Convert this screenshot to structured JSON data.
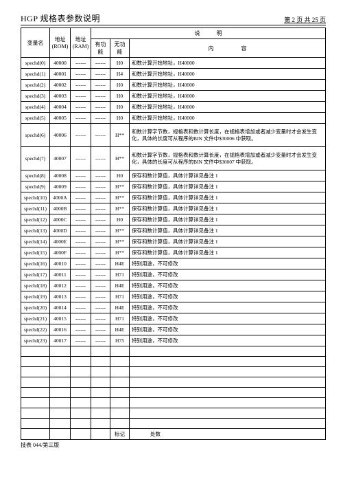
{
  "header": {
    "title": "HGP 规格表参数说明",
    "pager": "第 2 页 共 25 页"
  },
  "columns": {
    "var": "变量名",
    "rom": "地址",
    "rom_sub": "(ROM)",
    "ram": "地址",
    "ram_sub": "(RAM)",
    "desc_group": "说　　　明",
    "has_fn": "有功能",
    "no_fn": "无功能",
    "content": "内　　　　　容"
  },
  "rows": [
    {
      "v": "spechd(0)",
      "rom": "40000",
      "ram": "------",
      "y": "------",
      "n": "H0",
      "d": "和数计算开始地址，H40000"
    },
    {
      "v": "spechd(1)",
      "rom": "40001",
      "ram": "------",
      "y": "------",
      "n": "H4",
      "d": "和数计算开始地址，H40000"
    },
    {
      "v": "spechd(2)",
      "rom": "40002",
      "ram": "------",
      "y": "------",
      "n": "H0",
      "d": "和数计算开始地址，H40000"
    },
    {
      "v": "spechd(3)",
      "rom": "40003",
      "ram": "------",
      "y": "------",
      "n": "H0",
      "d": "和数计算开始地址，H40000"
    },
    {
      "v": "spechd(4)",
      "rom": "40004",
      "ram": "------",
      "y": "------",
      "n": "H0",
      "d": "和数计算开始地址，H40000"
    },
    {
      "v": "spechd(5)",
      "rom": "40005",
      "ram": "------",
      "y": "------",
      "n": "H0",
      "d": "和数计算开始地址，H40000"
    },
    {
      "v": "spechd(6)",
      "rom": "40006",
      "ram": "------",
      "y": "------",
      "n": "H**",
      "d": "和数计算字节数，规格表和数计算长度，在规格表增加或者减少变量时才会发生变化，具体的长度可从程序的BIN 文件中$30006 中获取。",
      "tall": true
    },
    {
      "v": "spechd(7)",
      "rom": "40007",
      "ram": "------",
      "y": "------",
      "n": "H**",
      "d": "和数计算字节数，规格表和数计算长度，在规格表增加或者减少变量时才会发生变化，具体的长度可从程序的BIN 文件中$30007 中获取。",
      "tall": true
    },
    {
      "v": "spechd(8)",
      "rom": "40008",
      "ram": "------",
      "y": "------",
      "n": "H0",
      "d": "保存和数计算值，具体计算详见备注 1"
    },
    {
      "v": "spechd(9)",
      "rom": "40009",
      "ram": "------",
      "y": "------",
      "n": "H**",
      "d": "保存和数计算值，具体计算详见备注 1"
    },
    {
      "v": "spechd(10)",
      "rom": "4000A",
      "ram": "------",
      "y": "------",
      "n": "H**",
      "d": "保存和数计算值，具体计算详见备注 1"
    },
    {
      "v": "spechd(11)",
      "rom": "4000B",
      "ram": "------",
      "y": "------",
      "n": "H**",
      "d": "保存和数计算值，具体计算详见备注 1"
    },
    {
      "v": "spechd(12)",
      "rom": "4000C",
      "ram": "------",
      "y": "------",
      "n": "H0",
      "d": "保存和数计算值，具体计算详见备注 1"
    },
    {
      "v": "spechd(13)",
      "rom": "4000D",
      "ram": "------",
      "y": "------",
      "n": "H**",
      "d": "保存和数计算值，具体计算详见备注 1"
    },
    {
      "v": "spechd(14)",
      "rom": "4000E",
      "ram": "------",
      "y": "------",
      "n": "H**",
      "d": "保存和数计算值，具体计算详见备注 1"
    },
    {
      "v": "spechd(15)",
      "rom": "4000F",
      "ram": "------",
      "y": "------",
      "n": "H**",
      "d": "保存和数计算值，具体计算详见备注 1"
    },
    {
      "v": "spechd(16)",
      "rom": "40010",
      "ram": "------",
      "y": "------",
      "n": "H4E",
      "d": "特别用途，不可修改"
    },
    {
      "v": "spechd(17)",
      "rom": "40011",
      "ram": "------",
      "y": "------",
      "n": "H71",
      "d": "特别用途，不可修改"
    },
    {
      "v": "spechd(18)",
      "rom": "40012",
      "ram": "------",
      "y": "------",
      "n": "H4E",
      "d": "特别用途，不可修改"
    },
    {
      "v": "spechd(19)",
      "rom": "40013",
      "ram": "------",
      "y": "------",
      "n": "H71",
      "d": "特别用途，不可修改"
    },
    {
      "v": "spechd(20)",
      "rom": "40014",
      "ram": "------",
      "y": "------",
      "n": "H4E",
      "d": "特别用途，不可修改"
    },
    {
      "v": "spechd(21)",
      "rom": "40015",
      "ram": "------",
      "y": "------",
      "n": "H71",
      "d": "特别用途，不可修改"
    },
    {
      "v": "spechd(22)",
      "rom": "40016",
      "ram": "------",
      "y": "------",
      "n": "H4E",
      "d": "特别用途，不可修改"
    },
    {
      "v": "spechd(23)",
      "rom": "40017",
      "ram": "------",
      "y": "------",
      "n": "H75",
      "d": "特别用途，不可修改"
    }
  ],
  "empty_rows": 8,
  "footer_labels": {
    "mark": "标记",
    "count": "处数"
  },
  "footer_note": "技表 044/第三版"
}
